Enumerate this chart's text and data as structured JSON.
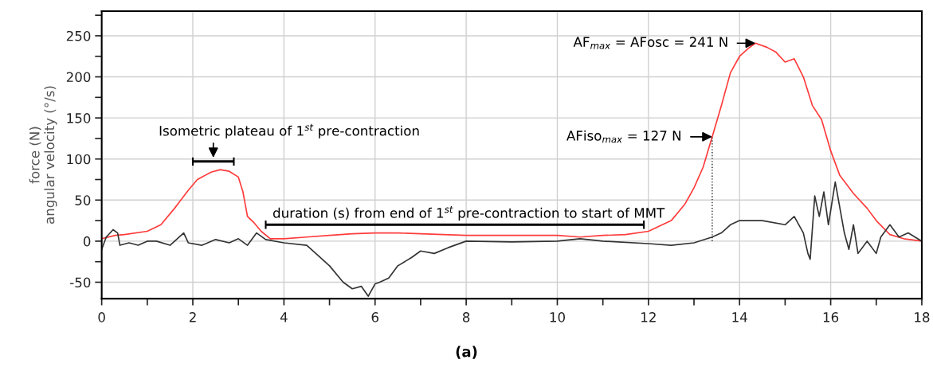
{
  "chart_data": {
    "type": "line",
    "ylabel": "force (N)\nangular velocity (°/s)",
    "xlim": [
      0,
      18
    ],
    "ylim": [
      -70,
      280
    ],
    "xticks": [
      0,
      {
        "value": 1,
        "label": null
      },
      2,
      {
        "value": 3,
        "label": null
      },
      4,
      {
        "value": 5,
        "label": null
      },
      6,
      {
        "value": 7,
        "label": null
      },
      8,
      {
        "value": 9,
        "label": null
      },
      10,
      {
        "value": 11,
        "label": null
      },
      12,
      {
        "value": 13,
        "label": null
      },
      14,
      {
        "value": 15,
        "label": null
      },
      16,
      {
        "value": 17,
        "label": null
      },
      18
    ],
    "yticks": [
      -50,
      {
        "value": -25,
        "label": null
      },
      0,
      {
        "value": 25,
        "label": null
      },
      50,
      {
        "value": 75,
        "label": null
      },
      100,
      {
        "value": 125,
        "label": null
      },
      150,
      {
        "value": 175,
        "label": null
      },
      200,
      {
        "value": 225,
        "label": null
      },
      250,
      {
        "value": 275,
        "label": null
      }
    ],
    "grid": true,
    "marker": "none",
    "line_style": "solid",
    "series": [
      {
        "color": "#ff3b3b",
        "x": [
          0,
          0.3,
          0.5,
          1.0,
          1.3,
          1.6,
          1.9,
          2.1,
          2.4,
          2.6,
          2.8,
          3.0,
          3.1,
          3.2,
          3.35,
          3.5,
          3.7,
          4.0,
          4.5,
          5.0,
          5.5,
          6.0,
          6.5,
          7.0,
          7.5,
          8.0,
          9.0,
          10.0,
          10.5,
          11.0,
          11.5,
          12.0,
          12.5,
          12.8,
          13.0,
          13.2,
          13.4,
          13.6,
          13.8,
          14.0,
          14.2,
          14.35,
          14.6,
          14.8,
          15.0,
          15.2,
          15.4,
          15.6,
          15.8,
          16.0,
          16.2,
          16.5,
          16.8,
          17.0,
          17.3,
          17.6,
          18.0
        ],
        "values": [
          3,
          7,
          8,
          12,
          20,
          40,
          62,
          75,
          84,
          87,
          85,
          78,
          60,
          30,
          22,
          12,
          3,
          3,
          5,
          7,
          9,
          10,
          10,
          9,
          8,
          7,
          7,
          7,
          5,
          7,
          8,
          12,
          25,
          45,
          65,
          90,
          127,
          165,
          205,
          225,
          235,
          241,
          236,
          230,
          218,
          222,
          200,
          165,
          148,
          110,
          80,
          58,
          40,
          25,
          8,
          3,
          0
        ]
      },
      {
        "color": "#333333",
        "x": [
          0,
          0.1,
          0.25,
          0.35,
          0.4,
          0.6,
          0.8,
          1.0,
          1.2,
          1.5,
          1.8,
          1.9,
          2.2,
          2.5,
          2.8,
          3.0,
          3.2,
          3.4,
          3.6,
          4.0,
          4.5,
          4.7,
          5.0,
          5.3,
          5.5,
          5.7,
          5.85,
          6.0,
          6.1,
          6.3,
          6.5,
          6.8,
          7.0,
          7.3,
          7.6,
          8.0,
          9.0,
          10.0,
          10.5,
          11.0,
          12.0,
          12.5,
          13.0,
          13.4,
          13.6,
          13.8,
          14.0,
          14.5,
          15.0,
          15.2,
          15.4,
          15.5,
          15.55,
          15.65,
          15.75,
          15.85,
          15.95,
          16.1,
          16.3,
          16.4,
          16.5,
          16.6,
          16.8,
          17.0,
          17.1,
          17.3,
          17.5,
          17.7,
          18.0
        ],
        "values": [
          -10,
          5,
          14,
          10,
          -5,
          -2,
          -5,
          0,
          0,
          -5,
          10,
          -2,
          -5,
          2,
          -2,
          3,
          -5,
          10,
          2,
          -2,
          -5,
          -15,
          -30,
          -50,
          -58,
          -55,
          -67,
          -52,
          -50,
          -45,
          -30,
          -20,
          -12,
          -15,
          -8,
          0,
          -1,
          0,
          3,
          0,
          -3,
          -5,
          -2,
          5,
          10,
          20,
          25,
          25,
          20,
          30,
          10,
          -15,
          -22,
          55,
          30,
          60,
          20,
          72,
          10,
          -10,
          20,
          -15,
          0,
          -15,
          5,
          20,
          5,
          10,
          0
        ]
      },
      {
        "color": "#222222",
        "line_style": "dotted",
        "x": [
          13.4,
          13.4
        ],
        "values": [
          0,
          127
        ]
      },
      {
        "color": "#000000",
        "line_style": "solid",
        "x": [
          2.0,
          2.9
        ],
        "values": [
          97,
          97
        ]
      },
      {
        "color": "#000000",
        "line_style": "solid",
        "x": [
          3.6,
          11.9
        ],
        "values": [
          20,
          20
        ]
      }
    ],
    "annotations": [
      {
        "text": "Isometric plateau of 1$^{st}$ pre-contraction",
        "x": 2.45,
        "y": 97
      },
      {
        "text": "duration (s) from end of 1$^{st}$ pre-contraction to start of MMT",
        "x": 7.75,
        "y": 20
      },
      {
        "text": "AF$_{max}$ = AFosc = 241 N",
        "x": 14.35,
        "y": 241
      },
      {
        "text": "AFiso$_{max}$ = 127 N",
        "x": 13.4,
        "y": 127
      },
      "(a)"
    ]
  }
}
